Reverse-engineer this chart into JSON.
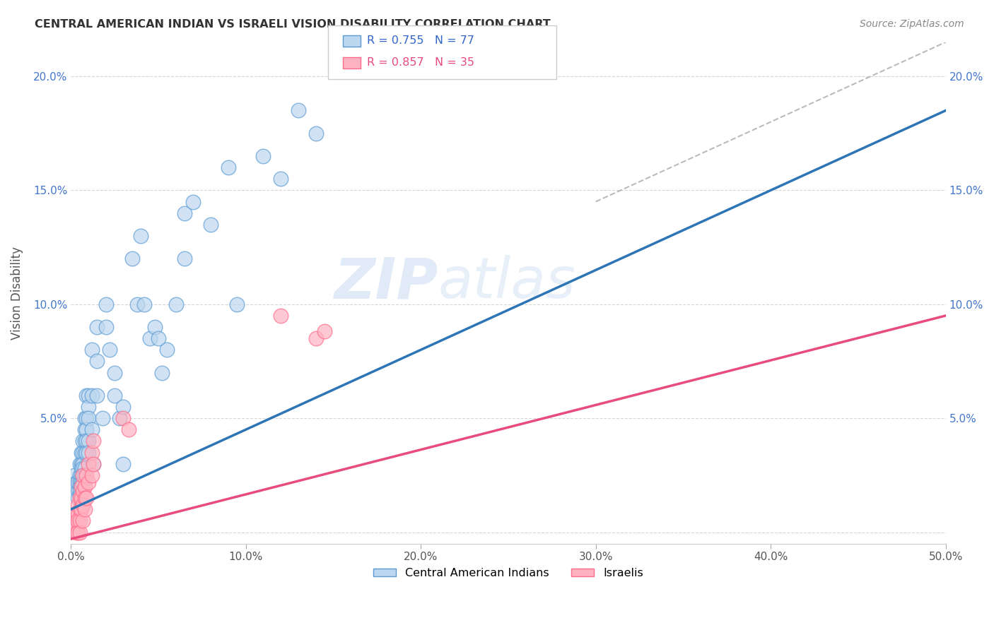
{
  "title": "CENTRAL AMERICAN INDIAN VS ISRAELI VISION DISABILITY CORRELATION CHART",
  "source": "Source: ZipAtlas.com",
  "ylabel": "Vision Disability",
  "xlim": [
    0.0,
    0.5
  ],
  "ylim": [
    -0.005,
    0.215
  ],
  "xticks": [
    0.0,
    0.1,
    0.2,
    0.3,
    0.4,
    0.5
  ],
  "xticklabels": [
    "0.0%",
    "10.0%",
    "20.0%",
    "30.0%",
    "40.0%",
    "50.0%"
  ],
  "yticks": [
    0.0,
    0.05,
    0.1,
    0.15,
    0.2
  ],
  "yticklabels": [
    "",
    "5.0%",
    "10.0%",
    "15.0%",
    "20.0%"
  ],
  "blue_color": "#BDD7EE",
  "blue_edge": "#5B9BD5",
  "pink_color": "#FFB3C1",
  "pink_edge": "#FF6B8A",
  "line_blue": "#2E75B6",
  "line_pink": "#E84C7D",
  "watermark_color": "#C5D8F0",
  "blue_scatter": [
    [
      0.002,
      0.025
    ],
    [
      0.003,
      0.022
    ],
    [
      0.003,
      0.02
    ],
    [
      0.004,
      0.018
    ],
    [
      0.004,
      0.015
    ],
    [
      0.004,
      0.022
    ],
    [
      0.005,
      0.03
    ],
    [
      0.005,
      0.025
    ],
    [
      0.005,
      0.022
    ],
    [
      0.005,
      0.02
    ],
    [
      0.005,
      0.018
    ],
    [
      0.005,
      0.016
    ],
    [
      0.006,
      0.035
    ],
    [
      0.006,
      0.03
    ],
    [
      0.006,
      0.028
    ],
    [
      0.006,
      0.025
    ],
    [
      0.006,
      0.022
    ],
    [
      0.006,
      0.02
    ],
    [
      0.007,
      0.04
    ],
    [
      0.007,
      0.035
    ],
    [
      0.007,
      0.03
    ],
    [
      0.007,
      0.028
    ],
    [
      0.007,
      0.025
    ],
    [
      0.007,
      0.022
    ],
    [
      0.008,
      0.05
    ],
    [
      0.008,
      0.045
    ],
    [
      0.008,
      0.04
    ],
    [
      0.008,
      0.035
    ],
    [
      0.008,
      0.028
    ],
    [
      0.008,
      0.025
    ],
    [
      0.009,
      0.06
    ],
    [
      0.009,
      0.05
    ],
    [
      0.009,
      0.045
    ],
    [
      0.009,
      0.04
    ],
    [
      0.009,
      0.035
    ],
    [
      0.01,
      0.06
    ],
    [
      0.01,
      0.055
    ],
    [
      0.01,
      0.05
    ],
    [
      0.01,
      0.04
    ],
    [
      0.01,
      0.035
    ],
    [
      0.012,
      0.08
    ],
    [
      0.012,
      0.06
    ],
    [
      0.012,
      0.045
    ],
    [
      0.013,
      0.03
    ],
    [
      0.015,
      0.09
    ],
    [
      0.015,
      0.075
    ],
    [
      0.015,
      0.06
    ],
    [
      0.018,
      0.05
    ],
    [
      0.02,
      0.1
    ],
    [
      0.02,
      0.09
    ],
    [
      0.022,
      0.08
    ],
    [
      0.025,
      0.07
    ],
    [
      0.025,
      0.06
    ],
    [
      0.028,
      0.05
    ],
    [
      0.03,
      0.055
    ],
    [
      0.03,
      0.03
    ],
    [
      0.035,
      0.12
    ],
    [
      0.038,
      0.1
    ],
    [
      0.04,
      0.13
    ],
    [
      0.042,
      0.1
    ],
    [
      0.045,
      0.085
    ],
    [
      0.048,
      0.09
    ],
    [
      0.05,
      0.085
    ],
    [
      0.052,
      0.07
    ],
    [
      0.055,
      0.08
    ],
    [
      0.06,
      0.1
    ],
    [
      0.065,
      0.14
    ],
    [
      0.065,
      0.12
    ],
    [
      0.07,
      0.145
    ],
    [
      0.08,
      0.135
    ],
    [
      0.09,
      0.16
    ],
    [
      0.095,
      0.1
    ],
    [
      0.11,
      0.165
    ],
    [
      0.12,
      0.155
    ],
    [
      0.13,
      0.185
    ],
    [
      0.14,
      0.175
    ],
    [
      0.185,
      0.205
    ]
  ],
  "pink_scatter": [
    [
      0.002,
      0.008
    ],
    [
      0.003,
      0.005
    ],
    [
      0.003,
      0.003
    ],
    [
      0.003,
      0.0
    ],
    [
      0.004,
      0.012
    ],
    [
      0.004,
      0.008
    ],
    [
      0.004,
      0.005
    ],
    [
      0.004,
      0.0
    ],
    [
      0.005,
      0.015
    ],
    [
      0.005,
      0.01
    ],
    [
      0.005,
      0.005
    ],
    [
      0.005,
      0.0
    ],
    [
      0.006,
      0.02
    ],
    [
      0.006,
      0.015
    ],
    [
      0.006,
      0.01
    ],
    [
      0.007,
      0.025
    ],
    [
      0.007,
      0.018
    ],
    [
      0.007,
      0.012
    ],
    [
      0.007,
      0.005
    ],
    [
      0.008,
      0.02
    ],
    [
      0.008,
      0.015
    ],
    [
      0.008,
      0.01
    ],
    [
      0.009,
      0.025
    ],
    [
      0.009,
      0.015
    ],
    [
      0.01,
      0.03
    ],
    [
      0.01,
      0.022
    ],
    [
      0.012,
      0.035
    ],
    [
      0.012,
      0.025
    ],
    [
      0.013,
      0.04
    ],
    [
      0.013,
      0.03
    ],
    [
      0.03,
      0.05
    ],
    [
      0.033,
      0.045
    ],
    [
      0.12,
      0.095
    ],
    [
      0.14,
      0.085
    ],
    [
      0.145,
      0.088
    ]
  ]
}
